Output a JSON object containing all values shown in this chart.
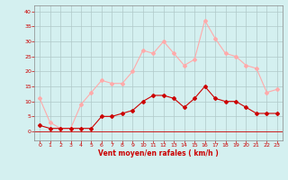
{
  "hours": [
    0,
    1,
    2,
    3,
    4,
    5,
    6,
    7,
    8,
    9,
    10,
    11,
    12,
    13,
    14,
    15,
    16,
    17,
    18,
    19,
    20,
    21,
    22,
    23
  ],
  "wind_avg": [
    2,
    1,
    1,
    1,
    1,
    1,
    5,
    5,
    6,
    7,
    10,
    12,
    12,
    11,
    8,
    11,
    15,
    11,
    10,
    10,
    8,
    6,
    6,
    6
  ],
  "wind_gust": [
    11,
    3,
    1,
    1,
    9,
    13,
    17,
    16,
    16,
    20,
    27,
    26,
    30,
    26,
    22,
    24,
    37,
    31,
    26,
    25,
    22,
    21,
    13,
    14
  ],
  "avg_color": "#cc0000",
  "gust_color": "#ffaaaa",
  "bg_color": "#d4f0f0",
  "grid_color": "#b0c8c8",
  "xlabel": "Vent moyen/en rafales ( km/h )",
  "ylim_min": -3,
  "ylim_max": 42,
  "xlim_min": -0.5,
  "xlim_max": 23.5,
  "yticks": [
    0,
    5,
    10,
    15,
    20,
    25,
    30,
    35,
    40
  ],
  "xticks": [
    0,
    1,
    2,
    3,
    4,
    5,
    6,
    7,
    8,
    9,
    10,
    11,
    12,
    13,
    14,
    15,
    16,
    17,
    18,
    19,
    20,
    21,
    22,
    23
  ]
}
